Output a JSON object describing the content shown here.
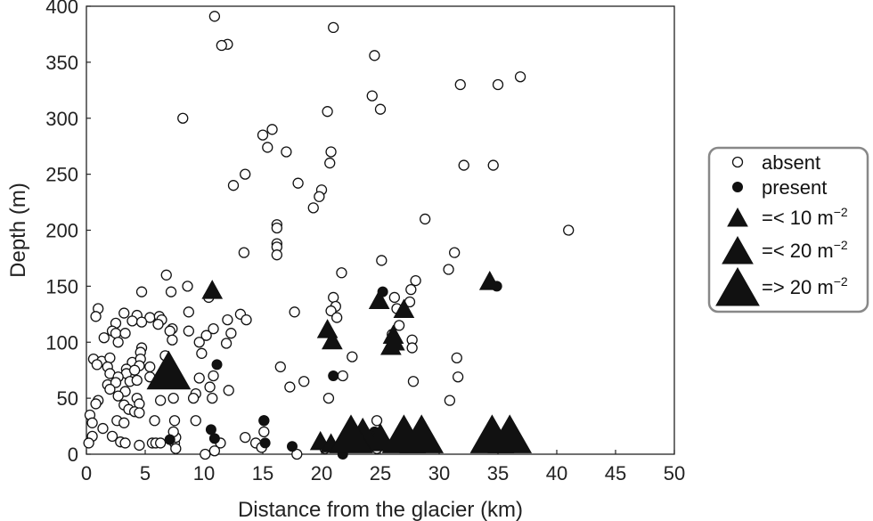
{
  "chart_data": {
    "type": "scatter",
    "xlabel": "Distance from the glacier (km)",
    "ylabel": "Depth (m)",
    "xlim": [
      0,
      50
    ],
    "ylim": [
      0,
      400
    ],
    "xticks": [
      "0",
      "5",
      "10",
      "15",
      "20",
      "25",
      "30",
      "35",
      "40",
      "45",
      "50"
    ],
    "yticks": [
      "0",
      "50",
      "100",
      "150",
      "200",
      "250",
      "300",
      "350",
      "400"
    ],
    "grid": false,
    "legend_position": "right",
    "legend": [
      {
        "label": "absent",
        "marker": "open-circle"
      },
      {
        "label": "present",
        "marker": "filled-circle"
      },
      {
        "label": "=< 10 m",
        "superscript": "−2",
        "marker": "small-triangle"
      },
      {
        "label": "=< 20 m",
        "superscript": "−2",
        "marker": "medium-triangle"
      },
      {
        "label": "=> 20 m",
        "superscript": "−2",
        "marker": "large-triangle"
      }
    ],
    "series": [
      {
        "name": "absent",
        "marker": "open-circle",
        "points": [
          [
            10.9,
            391
          ],
          [
            21,
            381
          ],
          [
            12,
            366
          ],
          [
            11.5,
            365
          ],
          [
            24.5,
            356
          ],
          [
            36.9,
            337
          ],
          [
            31.8,
            330
          ],
          [
            35,
            330
          ],
          [
            24.3,
            320
          ],
          [
            25,
            308
          ],
          [
            20.5,
            306
          ],
          [
            8.2,
            300
          ],
          [
            15.8,
            290
          ],
          [
            15,
            285
          ],
          [
            15.4,
            274
          ],
          [
            17,
            270
          ],
          [
            20.8,
            270
          ],
          [
            20.7,
            260
          ],
          [
            32.1,
            258
          ],
          [
            34.6,
            258
          ],
          [
            13.5,
            250
          ],
          [
            18,
            242
          ],
          [
            12.5,
            240
          ],
          [
            20,
            236
          ],
          [
            19.8,
            230
          ],
          [
            19.3,
            220
          ],
          [
            28.8,
            210
          ],
          [
            16.2,
            205
          ],
          [
            16.2,
            202
          ],
          [
            41,
            200
          ],
          [
            16.2,
            188
          ],
          [
            16.2,
            185
          ],
          [
            13.4,
            180
          ],
          [
            16.2,
            178
          ],
          [
            31.3,
            180
          ],
          [
            25.1,
            173
          ],
          [
            30.8,
            165
          ],
          [
            21.7,
            162
          ],
          [
            6.8,
            160
          ],
          [
            28,
            155
          ],
          [
            8.6,
            150
          ],
          [
            27.6,
            147
          ],
          [
            4.7,
            145
          ],
          [
            7.2,
            145
          ],
          [
            21,
            140
          ],
          [
            10.4,
            140
          ],
          [
            26.2,
            140
          ],
          [
            27.5,
            136
          ],
          [
            21.2,
            132
          ],
          [
            1,
            130
          ],
          [
            26.4,
            130
          ],
          [
            20.8,
            128
          ],
          [
            8.7,
            127
          ],
          [
            17.7,
            127
          ],
          [
            3.2,
            126
          ],
          [
            4.3,
            124
          ],
          [
            5.4,
            122
          ],
          [
            13.1,
            125
          ],
          [
            0.8,
            123
          ],
          [
            21.3,
            122
          ],
          [
            6.2,
            123
          ],
          [
            6.4,
            120
          ],
          [
            13.6,
            120
          ],
          [
            12,
            120
          ],
          [
            3.9,
            119
          ],
          [
            4.7,
            118
          ],
          [
            2.5,
            117
          ],
          [
            6.1,
            116
          ],
          [
            7.3,
            112
          ],
          [
            7.1,
            110
          ],
          [
            8.7,
            110
          ],
          [
            10.8,
            112
          ],
          [
            2.2,
            110
          ],
          [
            2.5,
            108
          ],
          [
            3.3,
            108
          ],
          [
            10.2,
            106
          ],
          [
            26,
            107
          ],
          [
            12.3,
            108
          ],
          [
            26.6,
            115
          ],
          [
            1.5,
            104
          ],
          [
            7.3,
            102
          ],
          [
            11.9,
            99
          ],
          [
            27.7,
            102
          ],
          [
            2.7,
            100
          ],
          [
            9.6,
            100
          ],
          [
            4.7,
            95
          ],
          [
            27.7,
            95
          ],
          [
            4.6,
            91
          ],
          [
            9.8,
            90
          ],
          [
            22.6,
            87
          ],
          [
            31.5,
            86
          ],
          [
            6.7,
            88
          ],
          [
            0.6,
            85
          ],
          [
            1.3,
            83
          ],
          [
            2,
            86
          ],
          [
            3.9,
            82
          ],
          [
            4.6,
            85
          ],
          [
            0.9,
            80
          ],
          [
            1.8,
            78
          ],
          [
            4.5,
            79
          ],
          [
            5.4,
            78
          ],
          [
            16.5,
            78
          ],
          [
            3.4,
            76
          ],
          [
            3.4,
            72
          ],
          [
            4.1,
            75
          ],
          [
            2,
            72
          ],
          [
            2.7,
            69
          ],
          [
            3.7,
            65
          ],
          [
            5.4,
            69
          ],
          [
            9.6,
            68
          ],
          [
            10.8,
            70
          ],
          [
            31.6,
            69
          ],
          [
            1.8,
            62
          ],
          [
            2.5,
            64
          ],
          [
            4.3,
            66
          ],
          [
            6.3,
            64
          ],
          [
            27.8,
            65
          ],
          [
            18.5,
            65
          ],
          [
            21.8,
            70
          ],
          [
            17.3,
            60
          ],
          [
            10.5,
            60
          ],
          [
            2,
            58
          ],
          [
            3.3,
            56
          ],
          [
            12.1,
            57
          ],
          [
            2.7,
            52
          ],
          [
            4.3,
            50
          ],
          [
            9.3,
            54
          ],
          [
            9.1,
            50
          ],
          [
            4.5,
            45
          ],
          [
            1,
            48
          ],
          [
            6.3,
            48
          ],
          [
            7.4,
            50
          ],
          [
            10.7,
            50
          ],
          [
            3.2,
            44
          ],
          [
            3.6,
            40
          ],
          [
            4.1,
            38
          ],
          [
            0.8,
            45
          ],
          [
            4.5,
            37
          ],
          [
            30.9,
            48
          ],
          [
            20.6,
            50
          ],
          [
            0.3,
            35
          ],
          [
            0.5,
            28
          ],
          [
            2.6,
            30
          ],
          [
            3.2,
            28
          ],
          [
            5.8,
            30
          ],
          [
            7.5,
            30
          ],
          [
            9.3,
            30
          ],
          [
            15.1,
            30
          ],
          [
            24.7,
            30
          ],
          [
            1.4,
            23
          ],
          [
            2.2,
            16
          ],
          [
            0.5,
            16
          ],
          [
            0.2,
            10
          ],
          [
            2.9,
            11
          ],
          [
            3.3,
            10
          ],
          [
            5.6,
            10
          ],
          [
            5.9,
            10
          ],
          [
            7.5,
            10
          ],
          [
            7.6,
            15
          ],
          [
            7.4,
            20
          ],
          [
            4.5,
            8
          ],
          [
            6.3,
            10
          ],
          [
            7.6,
            5
          ],
          [
            11.4,
            10
          ],
          [
            13.5,
            15
          ],
          [
            14.4,
            10
          ],
          [
            15.1,
            20
          ],
          [
            14.9,
            6
          ],
          [
            17.9,
            0
          ],
          [
            10.1,
            0
          ],
          [
            10.9,
            3
          ],
          [
            20.3,
            5
          ],
          [
            22.7,
            10
          ],
          [
            24.5,
            10
          ],
          [
            23.4,
            12
          ],
          [
            24.7,
            5
          ]
        ]
      },
      {
        "name": "present",
        "marker": "filled-circle",
        "points": [
          [
            34.9,
            150
          ],
          [
            25.2,
            145
          ],
          [
            21,
            70
          ],
          [
            11.1,
            80
          ],
          [
            15.1,
            30
          ],
          [
            10.6,
            22
          ],
          [
            24.5,
            20
          ],
          [
            10.9,
            14
          ],
          [
            7.1,
            13
          ],
          [
            15.2,
            10
          ],
          [
            17.5,
            7
          ],
          [
            21.8,
            0
          ]
        ]
      },
      {
        "name": "=< 10 m",
        "superscript": "−2",
        "marker": "small-triangle",
        "points": [
          [
            10.7,
            147
          ],
          [
            34.3,
            155
          ],
          [
            24.9,
            138
          ],
          [
            27,
            130
          ],
          [
            20.5,
            112
          ],
          [
            20.9,
            102
          ],
          [
            26.1,
            107
          ],
          [
            26.2,
            101
          ],
          [
            25.9,
            97
          ],
          [
            19.9,
            12
          ],
          [
            20.8,
            10
          ],
          [
            22.4,
            12
          ],
          [
            24.4,
            12
          ]
        ]
      },
      {
        "name": "=< 20 m",
        "superscript": "−2",
        "marker": "medium-triangle",
        "points": [
          [
            23.5,
            20
          ],
          [
            25,
            15
          ]
        ]
      },
      {
        "name": "=> 20 m",
        "superscript": "−2",
        "marker": "large-triangle",
        "points": [
          [
            7,
            75
          ],
          [
            22.5,
            18
          ],
          [
            27,
            18
          ],
          [
            28.5,
            18
          ],
          [
            34.5,
            18
          ],
          [
            36,
            18
          ]
        ]
      }
    ]
  }
}
